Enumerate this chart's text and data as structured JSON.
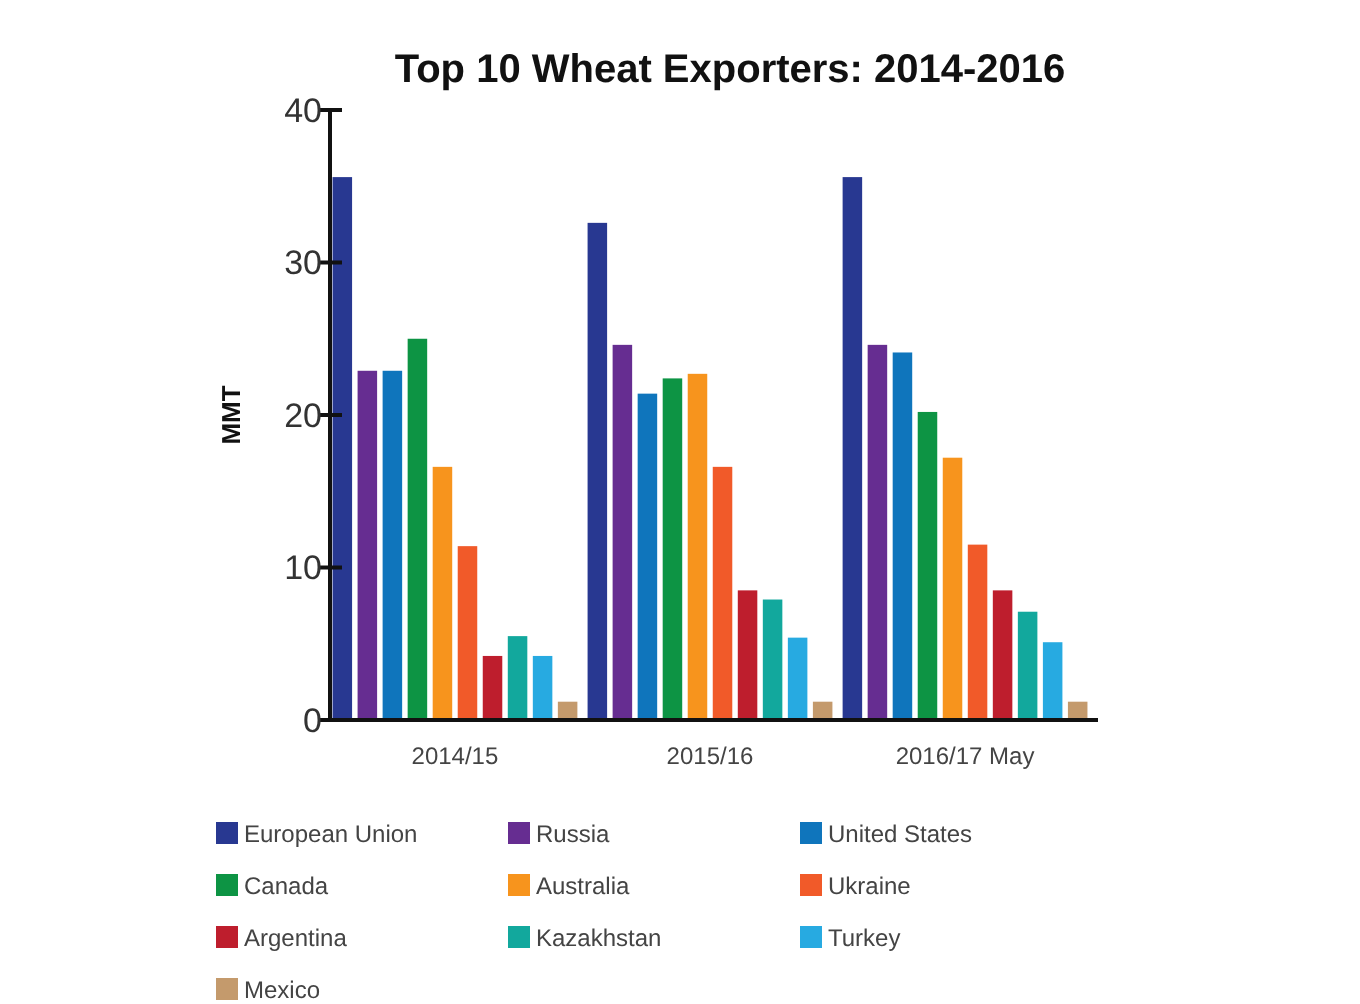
{
  "chart_data": {
    "type": "bar",
    "title": "Top 10 Wheat Exporters: 2014-2016",
    "ylabel": "MMT",
    "categories": [
      "2014/15",
      "2015/16",
      "2016/17 May"
    ],
    "series": [
      {
        "name": "European Union",
        "color": "#283891",
        "values": [
          35.6,
          32.6,
          35.6
        ]
      },
      {
        "name": "Russia",
        "color": "#662d91",
        "values": [
          22.9,
          24.6,
          24.6
        ]
      },
      {
        "name": "United States",
        "color": "#0f75bc",
        "values": [
          22.9,
          21.4,
          24.1
        ]
      },
      {
        "name": "Canada",
        "color": "#0d9444",
        "values": [
          25.0,
          22.4,
          20.2
        ]
      },
      {
        "name": "Australia",
        "color": "#f7941d",
        "values": [
          16.6,
          22.7,
          17.2
        ]
      },
      {
        "name": "Ukraine",
        "color": "#f15a29",
        "values": [
          11.4,
          16.6,
          11.5
        ]
      },
      {
        "name": "Argentina",
        "color": "#be1e2d",
        "values": [
          4.2,
          8.5,
          8.5
        ]
      },
      {
        "name": "Kazakhstan",
        "color": "#12a89d",
        "values": [
          5.5,
          7.9,
          7.1
        ]
      },
      {
        "name": "Turkey",
        "color": "#27aae1",
        "values": [
          4.2,
          5.4,
          5.1
        ]
      },
      {
        "name": "Mexico",
        "color": "#c49a6c",
        "values": [
          1.2,
          1.2,
          1.2
        ]
      }
    ],
    "ylim": [
      0,
      40
    ],
    "yticks": [
      0,
      10,
      20,
      30,
      40
    ],
    "grid": false,
    "legend": "bottom"
  }
}
